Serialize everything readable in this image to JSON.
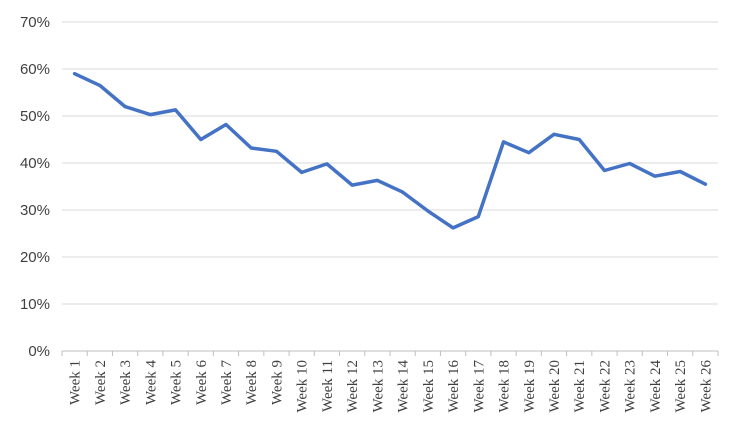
{
  "chart_data": {
    "type": "line",
    "title": "",
    "xlabel": "",
    "ylabel": "",
    "ylim": [
      0,
      70
    ],
    "y_ticks": [
      "0%",
      "10%",
      "20%",
      "30%",
      "40%",
      "50%",
      "60%",
      "70%"
    ],
    "y_tick_values": [
      0,
      10,
      20,
      30,
      40,
      50,
      60,
      70
    ],
    "grid": true,
    "legend": "none",
    "categories": [
      "Week 1",
      "Week 2",
      "Week 3",
      "Week 4",
      "Week 5",
      "Week 6",
      "Week 7",
      "Week 8",
      "Week 9",
      "Week 10",
      "Week 11",
      "Week 12",
      "Week 13",
      "Week 14",
      "Week 15",
      "Week 16",
      "Week 17",
      "Week 18",
      "Week 19",
      "Week 20",
      "Week 21",
      "Week 22",
      "Week 23",
      "Week 24",
      "Week 25",
      "Week 26"
    ],
    "series": [
      {
        "values": [
          59,
          56.5,
          52,
          50.3,
          51.3,
          45,
          48.2,
          43.2,
          42.5,
          38,
          39.8,
          35.3,
          36.3,
          33.8,
          29.8,
          26.2,
          28.6,
          44.5,
          42.2,
          46.1,
          45,
          38.4,
          39.9,
          37.2,
          38.2,
          35.5
        ],
        "color": "#4472c4"
      }
    ]
  }
}
